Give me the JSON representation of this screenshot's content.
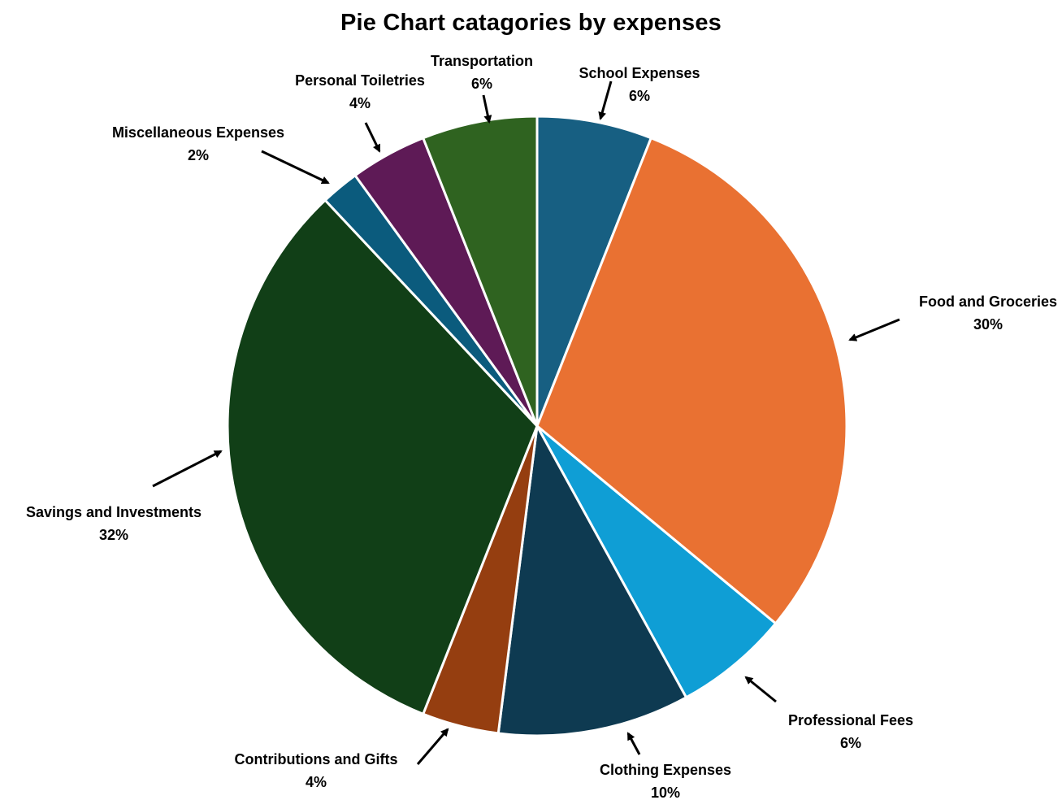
{
  "chart_data": {
    "type": "pie",
    "title": "Pie Chart catagories by expenses",
    "start_angle_deg": 0,
    "direction": "clockwise",
    "slices": [
      {
        "label": "School Expenses",
        "value": 6,
        "display": "6%",
        "color": "#175f82"
      },
      {
        "label": "Food and Groceries",
        "value": 30,
        "display": "30%",
        "color": "#e97132"
      },
      {
        "label": "Professional Fees",
        "value": 6,
        "display": "6%",
        "color": "#0f9ed5"
      },
      {
        "label": "Clothing Expenses",
        "value": 10,
        "display": "10%",
        "color": "#0e3a51"
      },
      {
        "label": "Contributions and Gifts",
        "value": 4,
        "display": "4%",
        "color": "#953e10"
      },
      {
        "label": "Savings and Investments",
        "value": 32,
        "display": "32%",
        "color": "#113f17"
      },
      {
        "label": "Miscellaneous Expenses",
        "value": 2,
        "display": "2%",
        "color": "#0b5b7d"
      },
      {
        "label": "Personal Toiletries",
        "value": 4,
        "display": "4%",
        "color": "#5e1a56"
      },
      {
        "label": "Transportation",
        "value": 6,
        "display": "6%",
        "color": "#2f6320"
      }
    ],
    "legend": "none"
  }
}
